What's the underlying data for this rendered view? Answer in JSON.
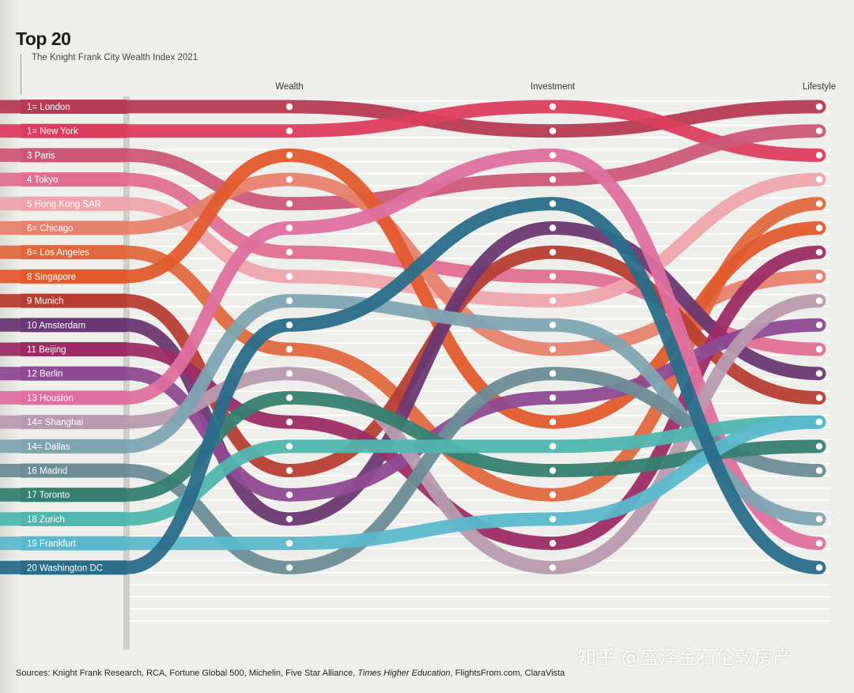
{
  "title": "Top 20",
  "subtitle": "The Knight Frank City Wealth Index 2021",
  "sources_prefix": "Sources: Knight Frank Research, RCA, Fortune Global 500, Michelin, Five Star Alliance, ",
  "sources_italic": "Times Higher Education",
  "sources_suffix": ", FlightsFrom.com, ClaraVista",
  "watermark": "知乎 @盛泽金石伦敦房产",
  "chart_data": {
    "type": "bump",
    "columns": [
      "Wealth",
      "Investment",
      "Lifestyle"
    ],
    "series": [
      {
        "rank_label": "1=",
        "name": "London",
        "color": "#b63a52",
        "ranks": [
          1,
          2,
          1
        ]
      },
      {
        "rank_label": "1=",
        "name": "New York",
        "color": "#dc3d5e",
        "ranks": [
          2,
          1,
          3
        ]
      },
      {
        "rank_label": "3",
        "name": "Paris",
        "color": "#cc5878",
        "ranks": [
          5,
          4,
          2
        ]
      },
      {
        "rank_label": "4",
        "name": "Tokyo",
        "color": "#e26e94",
        "ranks": [
          7,
          8,
          11
        ]
      },
      {
        "rank_label": "5",
        "name": "Hong Kong SAR",
        "color": "#eea5ad",
        "ranks": [
          8,
          9,
          4
        ]
      },
      {
        "rank_label": "6=",
        "name": "Chicago",
        "color": "#e6816e",
        "ranks": [
          4,
          11,
          8
        ]
      },
      {
        "rank_label": "6=",
        "name": "Los Angeles",
        "color": "#e0683f",
        "ranks": [
          11,
          17,
          5
        ]
      },
      {
        "rank_label": "8",
        "name": "Singapore",
        "color": "#e25a2e",
        "ranks": [
          3,
          14,
          6
        ]
      },
      {
        "rank_label": "9",
        "name": "Munich",
        "color": "#b73e34",
        "ranks": [
          16,
          7,
          13
        ]
      },
      {
        "rank_label": "10",
        "name": "Amsterdam",
        "color": "#6a3872",
        "ranks": [
          18,
          6,
          12
        ]
      },
      {
        "rank_label": "11",
        "name": "Beijing",
        "color": "#9c2c66",
        "ranks": [
          14,
          19,
          7
        ]
      },
      {
        "rank_label": "12",
        "name": "Berlin",
        "color": "#8e4a92",
        "ranks": [
          17,
          13,
          10
        ]
      },
      {
        "rank_label": "13",
        "name": "Houston",
        "color": "#de6fa0",
        "ranks": [
          6,
          3,
          19
        ]
      },
      {
        "rank_label": "14=",
        "name": "Shanghai",
        "color": "#b89ab0",
        "ranks": [
          12,
          20,
          9
        ]
      },
      {
        "rank_label": "14=",
        "name": "Dallas",
        "color": "#7ea4b2",
        "ranks": [
          9,
          10,
          18
        ]
      },
      {
        "rank_label": "16",
        "name": "Madrid",
        "color": "#6d8c98",
        "ranks": [
          20,
          12,
          16
        ]
      },
      {
        "rank_label": "17",
        "name": "Toronto",
        "color": "#367f72",
        "ranks": [
          13,
          16,
          15
        ]
      },
      {
        "rank_label": "18",
        "name": "Zurich",
        "color": "#50b6ae",
        "ranks": [
          15,
          15,
          14
        ]
      },
      {
        "rank_label": "19",
        "name": "Frankfurt",
        "color": "#5bb8cc",
        "ranks": [
          19,
          18,
          14
        ]
      },
      {
        "rank_label": "20",
        "name": "Washington DC",
        "color": "#2a6d8a",
        "ranks": [
          10,
          5,
          20
        ]
      }
    ]
  }
}
